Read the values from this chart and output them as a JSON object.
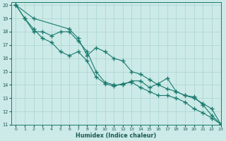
{
  "xlabel": "Humidex (Indice chaleur)",
  "background_color": "#cceae7",
  "grid_color": "#aad4d0",
  "line_color": "#1a7a6e",
  "xlim": [
    -0.5,
    23
  ],
  "ylim": [
    11,
    20.2
  ],
  "xticks": [
    0,
    1,
    2,
    3,
    4,
    5,
    6,
    7,
    8,
    9,
    10,
    11,
    12,
    13,
    14,
    15,
    16,
    17,
    18,
    19,
    20,
    21,
    22,
    23
  ],
  "yticks": [
    11,
    12,
    13,
    14,
    15,
    16,
    17,
    18,
    19,
    20
  ],
  "series": [
    {
      "x": [
        0,
        1,
        2,
        3,
        4,
        5,
        6,
        7,
        8,
        9,
        10,
        11,
        12,
        13,
        14,
        15,
        16,
        17,
        18,
        19,
        20,
        21,
        22,
        23
      ],
      "y": [
        20,
        19,
        18,
        18,
        17.7,
        18,
        18,
        17.3,
        16.5,
        15,
        14.2,
        14,
        14,
        14.3,
        14.3,
        13.8,
        14.1,
        14.5,
        13.5,
        13.2,
        13.1,
        12.5,
        11.7,
        11.05
      ]
    },
    {
      "x": [
        0,
        1,
        2,
        3,
        4,
        5,
        6,
        7,
        8,
        9,
        10,
        11,
        12,
        13,
        14,
        15,
        16,
        17,
        18,
        19,
        20,
        21,
        22,
        23
      ],
      "y": [
        20,
        19,
        18.2,
        17.5,
        17.2,
        16.5,
        16.2,
        16.5,
        15.8,
        14.6,
        14.1,
        13.9,
        14.1,
        14.2,
        13.8,
        13.5,
        13.2,
        13.2,
        13,
        12.7,
        12.2,
        11.9,
        11.5,
        11.05
      ]
    },
    {
      "x": [
        0,
        2,
        6,
        7,
        8,
        9,
        10,
        11,
        12,
        13,
        14,
        15,
        16,
        17,
        18,
        19,
        20,
        21,
        22,
        23
      ],
      "y": [
        20,
        19,
        18.2,
        17.5,
        16.2,
        16.8,
        16.5,
        16,
        15.8,
        15,
        14.8,
        14.4,
        14.0,
        13.7,
        13.5,
        13.2,
        13.0,
        12.6,
        12.2,
        11.05
      ]
    }
  ]
}
